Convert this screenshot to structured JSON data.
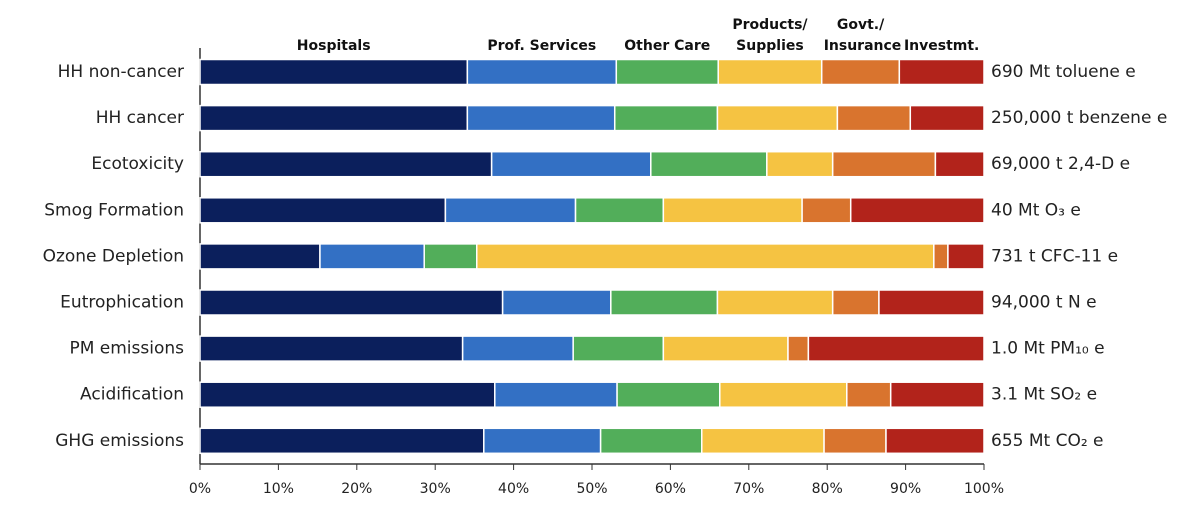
{
  "chart_data": {
    "type": "stacked_bar_horizontal",
    "categories": [
      "HH non-cancer",
      "HH cancer",
      "Ecotoxicity",
      "Smog Formation",
      "Ozone Depletion",
      "Eutrophication",
      "PM emissions",
      "Acidification",
      "GHG emissions"
    ],
    "unit_labels": [
      "690 Mt toluene e",
      "250,000 t benzene e",
      "69,000 t 2,4-D e",
      "40 Mt O₃ e",
      "731 t CFC-11 e",
      "94,000 t N e",
      "1.0 Mt PM₁₀ e",
      "3.1 Mt SO₂ e",
      "655 Mt CO₂ e"
    ],
    "series": [
      {
        "name": "Hospitals",
        "color": "#0b1f5c",
        "values": [
          34.1,
          34.1,
          37.2,
          31.3,
          15.3,
          38.6,
          33.5,
          37.6,
          36.2
        ]
      },
      {
        "name": "Prof. Services",
        "color": "#3370c4",
        "values": [
          19.0,
          18.8,
          20.3,
          16.6,
          13.3,
          13.8,
          14.1,
          15.6,
          14.9
        ]
      },
      {
        "name": "Other Care",
        "color": "#52ae5a",
        "values": [
          13.0,
          13.1,
          14.8,
          11.2,
          6.7,
          13.6,
          11.5,
          13.1,
          12.9
        ]
      },
      {
        "name": "Products/ Supplies",
        "color": "#f5c342",
        "values": [
          13.2,
          15.3,
          8.4,
          17.7,
          58.3,
          14.7,
          15.9,
          16.2,
          15.6
        ]
      },
      {
        "name": "Govt./ Insurance",
        "color": "#d9742e",
        "values": [
          9.9,
          9.3,
          13.1,
          6.2,
          1.8,
          5.9,
          2.6,
          5.6,
          7.9
        ]
      },
      {
        "name": "Investmt.",
        "color": "#b2231b",
        "values": [
          10.8,
          9.4,
          6.2,
          17.0,
          4.6,
          13.4,
          22.4,
          11.9,
          12.5
        ]
      }
    ],
    "xlim": [
      0,
      100
    ],
    "xticks": [
      {
        "value": 0,
        "label": "0%"
      },
      {
        "value": 10,
        "label": "10%"
      },
      {
        "value": 20,
        "label": "20%"
      },
      {
        "value": 30,
        "label": "30%"
      },
      {
        "value": 40,
        "label": "40%"
      },
      {
        "value": 50,
        "label": "50%"
      },
      {
        "value": 60,
        "label": "60%"
      },
      {
        "value": 70,
        "label": "70%"
      },
      {
        "value": 80,
        "label": "80%"
      },
      {
        "value": 90,
        "label": "90%"
      },
      {
        "value": 100,
        "label": "100%"
      }
    ]
  }
}
